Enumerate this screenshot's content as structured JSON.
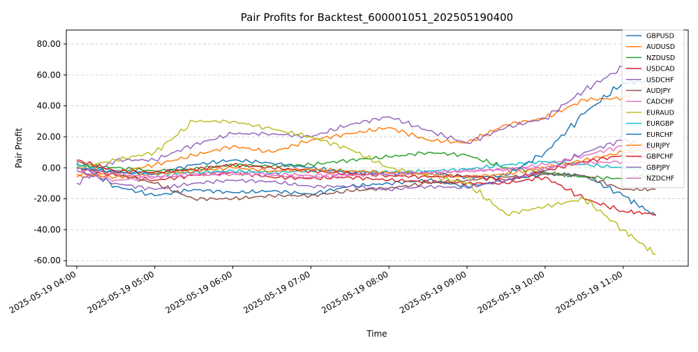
{
  "chart_data": {
    "type": "line",
    "title": "Pair Profits for Backtest_600001051_202505190400",
    "xlabel": "Time",
    "ylabel": "Pair Profit",
    "ylim": [
      -63.5,
      89
    ],
    "y_ticks": [
      -60,
      -40,
      -20,
      0,
      20,
      40,
      60,
      80
    ],
    "y_tick_labels": [
      "-60.00",
      "-40.00",
      "-20.00",
      "0.00",
      "20.00",
      "40.00",
      "60.00",
      "80.00"
    ],
    "x_tick_labels": [
      "2025-05-19 04:00",
      "2025-05-19 05:00",
      "2025-05-19 06:00",
      "2025-05-19 07:00",
      "2025-05-19 08:00",
      "2025-05-19 09:00",
      "2025-05-19 10:00",
      "2025-05-19 11:00"
    ],
    "xlim": [
      "2025-05-19 03:52",
      "2025-05-19 11:50"
    ],
    "grid": "horizontal dashed",
    "legend_position": "top-right",
    "series": [
      {
        "name": "GBPUSD",
        "color": "#1f77b4",
        "x": [
          "2025-05-19 04:00",
          "2025-05-19 04:30",
          "2025-05-19 05:00",
          "2025-05-19 05:30",
          "2025-05-19 06:00",
          "2025-05-19 06:30",
          "2025-05-19 07:00",
          "2025-05-19 07:30",
          "2025-05-19 08:00",
          "2025-05-19 08:30",
          "2025-05-19 09:00",
          "2025-05-19 09:30",
          "2025-05-19 10:00",
          "2025-05-19 10:30",
          "2025-05-19 11:00",
          "2025-05-19 11:25"
        ],
        "values": [
          3,
          -12,
          -18,
          -14,
          -16,
          -15,
          -17,
          -12,
          -10,
          -8,
          -12,
          -8,
          -4,
          -5,
          -18,
          -31
        ]
      },
      {
        "name": "AUDUSD",
        "color": "#ff7f0e",
        "x": [
          "2025-05-19 04:00",
          "2025-05-19 04:30",
          "2025-05-19 05:00",
          "2025-05-19 05:30",
          "2025-05-19 06:00",
          "2025-05-19 06:30",
          "2025-05-19 07:00",
          "2025-05-19 07:30",
          "2025-05-19 08:00",
          "2025-05-19 08:30",
          "2025-05-19 09:00",
          "2025-05-19 09:30",
          "2025-05-19 10:00",
          "2025-05-19 10:30",
          "2025-05-19 11:00",
          "2025-05-19 11:25"
        ],
        "values": [
          -6,
          -3,
          2,
          8,
          14,
          10,
          18,
          22,
          26,
          18,
          16,
          28,
          32,
          44,
          45,
          55
        ]
      },
      {
        "name": "NZDUSD",
        "color": "#2ca02c",
        "x": [
          "2025-05-19 04:00",
          "2025-05-19 04:30",
          "2025-05-19 05:00",
          "2025-05-19 05:30",
          "2025-05-19 06:00",
          "2025-05-19 06:30",
          "2025-05-19 07:00",
          "2025-05-19 07:30",
          "2025-05-19 08:00",
          "2025-05-19 08:30",
          "2025-05-19 09:00",
          "2025-05-19 09:30",
          "2025-05-19 10:00",
          "2025-05-19 10:30",
          "2025-05-19 11:00",
          "2025-05-19 11:25"
        ],
        "values": [
          2,
          0,
          -2,
          -1,
          2,
          1,
          2,
          5,
          7,
          10,
          8,
          0,
          -3,
          -6,
          -7,
          -4
        ]
      },
      {
        "name": "USDCAD",
        "color": "#d62728",
        "x": [
          "2025-05-19 04:00",
          "2025-05-19 04:30",
          "2025-05-19 05:00",
          "2025-05-19 05:30",
          "2025-05-19 06:00",
          "2025-05-19 06:30",
          "2025-05-19 07:00",
          "2025-05-19 07:30",
          "2025-05-19 08:00",
          "2025-05-19 08:30",
          "2025-05-19 09:00",
          "2025-05-19 09:30",
          "2025-05-19 10:00",
          "2025-05-19 10:30",
          "2025-05-19 11:00",
          "2025-05-19 11:25"
        ],
        "values": [
          0,
          -5,
          -8,
          -5,
          -3,
          -6,
          -7,
          -6,
          -8,
          -9,
          -10,
          -10,
          -6,
          -20,
          -28,
          -30
        ]
      },
      {
        "name": "USDCHF",
        "color": "#9467bd",
        "x": [
          "2025-05-19 04:00",
          "2025-05-19 04:30",
          "2025-05-19 05:00",
          "2025-05-19 05:30",
          "2025-05-19 06:00",
          "2025-05-19 06:30",
          "2025-05-19 07:00",
          "2025-05-19 07:30",
          "2025-05-19 08:00",
          "2025-05-19 08:30",
          "2025-05-19 09:00",
          "2025-05-19 09:30",
          "2025-05-19 10:00",
          "2025-05-19 10:30",
          "2025-05-19 11:00",
          "2025-05-19 11:25"
        ],
        "values": [
          -10,
          5,
          5,
          15,
          22,
          22,
          20,
          28,
          33,
          24,
          16,
          26,
          32,
          50,
          65,
          62
        ]
      },
      {
        "name": "AUDJPY",
        "color": "#8c564b",
        "x": [
          "2025-05-19 04:00",
          "2025-05-19 04:30",
          "2025-05-19 05:00",
          "2025-05-19 05:30",
          "2025-05-19 06:00",
          "2025-05-19 06:30",
          "2025-05-19 07:00",
          "2025-05-19 07:30",
          "2025-05-19 08:00",
          "2025-05-19 08:30",
          "2025-05-19 09:00",
          "2025-05-19 09:30",
          "2025-05-19 10:00",
          "2025-05-19 10:30",
          "2025-05-19 11:00",
          "2025-05-19 11:25"
        ],
        "values": [
          4,
          -4,
          -10,
          -20,
          -20,
          -18,
          -18,
          -15,
          -13,
          -10,
          -8,
          -6,
          -4,
          -5,
          -14,
          -14
        ]
      },
      {
        "name": "CADCHF",
        "color": "#e377c2",
        "x": [
          "2025-05-19 04:00",
          "2025-05-19 04:30",
          "2025-05-19 05:00",
          "2025-05-19 05:30",
          "2025-05-19 06:00",
          "2025-05-19 06:30",
          "2025-05-19 07:00",
          "2025-05-19 07:30",
          "2025-05-19 08:00",
          "2025-05-19 08:30",
          "2025-05-19 09:00",
          "2025-05-19 09:30",
          "2025-05-19 10:00",
          "2025-05-19 10:30",
          "2025-05-19 11:00",
          "2025-05-19 11:25"
        ],
        "values": [
          -2,
          -8,
          -6,
          -4,
          -3,
          -4,
          -5,
          -4,
          -3,
          -4,
          -2,
          -1,
          2,
          8,
          14,
          12
        ]
      },
      {
        "name": "EURAUD",
        "color": "#bcbd22",
        "x": [
          "2025-05-19 04:00",
          "2025-05-19 04:30",
          "2025-05-19 05:00",
          "2025-05-19 05:30",
          "2025-05-19 06:00",
          "2025-05-19 06:30",
          "2025-05-19 07:00",
          "2025-05-19 07:30",
          "2025-05-19 08:00",
          "2025-05-19 08:30",
          "2025-05-19 09:00",
          "2025-05-19 09:30",
          "2025-05-19 10:00",
          "2025-05-19 10:30",
          "2025-05-19 11:00",
          "2025-05-19 11:25"
        ],
        "values": [
          0,
          5,
          10,
          30,
          30,
          25,
          20,
          12,
          0,
          -5,
          -10,
          -30,
          -25,
          -20,
          -40,
          -56
        ]
      },
      {
        "name": "EURGBP",
        "color": "#17becf",
        "x": [
          "2025-05-19 04:00",
          "2025-05-19 04:30",
          "2025-05-19 05:00",
          "2025-05-19 05:30",
          "2025-05-19 06:00",
          "2025-05-19 06:30",
          "2025-05-19 07:00",
          "2025-05-19 07:30",
          "2025-05-19 08:00",
          "2025-05-19 08:30",
          "2025-05-19 09:00",
          "2025-05-19 09:30",
          "2025-05-19 10:00",
          "2025-05-19 10:30",
          "2025-05-19 11:00",
          "2025-05-19 11:25"
        ],
        "values": [
          2,
          -2,
          -4,
          -3,
          -2,
          -3,
          -2,
          -2,
          -3,
          -2,
          -1,
          2,
          4,
          2,
          0,
          -2
        ]
      },
      {
        "name": "EURCHF",
        "color": "#1f77b4",
        "x": [
          "2025-05-19 04:00",
          "2025-05-19 04:30",
          "2025-05-19 05:00",
          "2025-05-19 05:30",
          "2025-05-19 06:00",
          "2025-05-19 06:30",
          "2025-05-19 07:00",
          "2025-05-19 07:30",
          "2025-05-19 08:00",
          "2025-05-19 08:30",
          "2025-05-19 09:00",
          "2025-05-19 09:30",
          "2025-05-19 10:00",
          "2025-05-19 10:30",
          "2025-05-19 11:00",
          "2025-05-19 11:25"
        ],
        "values": [
          0,
          -3,
          -4,
          2,
          5,
          3,
          0,
          -3,
          -4,
          -3,
          -6,
          -5,
          10,
          35,
          55,
          56
        ]
      },
      {
        "name": "EURJPY",
        "color": "#ff7f0e",
        "x": [
          "2025-05-19 04:00",
          "2025-05-19 04:30",
          "2025-05-19 05:00",
          "2025-05-19 05:30",
          "2025-05-19 06:00",
          "2025-05-19 06:30",
          "2025-05-19 07:00",
          "2025-05-19 07:30",
          "2025-05-19 08:00",
          "2025-05-19 08:30",
          "2025-05-19 09:00",
          "2025-05-19 09:30",
          "2025-05-19 10:00",
          "2025-05-19 10:30",
          "2025-05-19 11:00",
          "2025-05-19 11:25"
        ],
        "values": [
          -4,
          -6,
          -4,
          -2,
          0,
          -2,
          -1,
          -2,
          -3,
          -4,
          -6,
          -4,
          0,
          5,
          10,
          12
        ]
      },
      {
        "name": "GBPCHF",
        "color": "#d62728",
        "x": [
          "2025-05-19 04:00",
          "2025-05-19 04:30",
          "2025-05-19 05:00",
          "2025-05-19 05:30",
          "2025-05-19 06:00",
          "2025-05-19 06:30",
          "2025-05-19 07:00",
          "2025-05-19 07:30",
          "2025-05-19 08:00",
          "2025-05-19 08:30",
          "2025-05-19 09:00",
          "2025-05-19 09:30",
          "2025-05-19 10:00",
          "2025-05-19 10:30",
          "2025-05-19 11:00",
          "2025-05-19 11:25"
        ],
        "values": [
          5,
          -2,
          -3,
          -1,
          2,
          0,
          -2,
          -4,
          -5,
          -6,
          -5,
          -8,
          -2,
          4,
          8,
          6
        ]
      },
      {
        "name": "GBPJPY",
        "color": "#9467bd",
        "x": [
          "2025-05-19 04:00",
          "2025-05-19 04:30",
          "2025-05-19 05:00",
          "2025-05-19 05:30",
          "2025-05-19 06:00",
          "2025-05-19 06:30",
          "2025-05-19 07:00",
          "2025-05-19 07:30",
          "2025-05-19 08:00",
          "2025-05-19 08:30",
          "2025-05-19 09:00",
          "2025-05-19 09:30",
          "2025-05-19 10:00",
          "2025-05-19 10:30",
          "2025-05-19 11:00",
          "2025-05-19 11:25"
        ],
        "values": [
          -2,
          -10,
          -14,
          -10,
          -8,
          -9,
          -12,
          -12,
          -14,
          -12,
          -13,
          -8,
          -2,
          10,
          18,
          12
        ]
      },
      {
        "name": "NZDCHF",
        "color": "#e377c2",
        "x": [
          "2025-05-19 04:00",
          "2025-05-19 04:30",
          "2025-05-19 05:00",
          "2025-05-19 05:30",
          "2025-05-19 06:00",
          "2025-05-19 06:30",
          "2025-05-19 07:00",
          "2025-05-19 07:30",
          "2025-05-19 08:00",
          "2025-05-19 08:30",
          "2025-05-19 09:00",
          "2025-05-19 09:30",
          "2025-05-19 10:00",
          "2025-05-19 10:30",
          "2025-05-19 11:00",
          "2025-05-19 11:25"
        ],
        "values": [
          -1,
          -4,
          -6,
          -5,
          -4,
          -5,
          -6,
          -5,
          -4,
          -3,
          -2,
          -1,
          0,
          3,
          4,
          3
        ]
      }
    ]
  }
}
